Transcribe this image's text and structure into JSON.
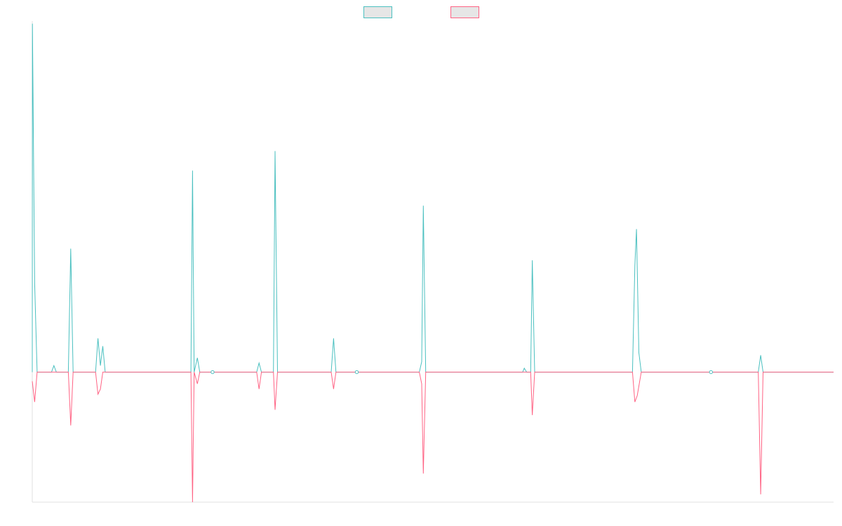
{
  "chart_data": {
    "type": "line",
    "title": "",
    "xlabel": "",
    "ylabel": "",
    "grid": false,
    "legend": "top-center",
    "x_range": [
      0,
      1000
    ],
    "ylim": [
      -100,
      270
    ],
    "series": [
      {
        "color": "#4bc0c0",
        "legend_fill": "#e6e6e6",
        "values": [
          [
            0,
            0
          ],
          [
            0.2,
            268
          ],
          [
            3,
            68
          ],
          [
            6,
            0
          ],
          [
            24,
            0
          ],
          [
            27,
            5
          ],
          [
            30,
            0
          ],
          [
            45,
            0
          ],
          [
            48,
            95
          ],
          [
            51,
            0
          ],
          [
            79,
            0
          ],
          [
            82,
            26
          ],
          [
            85,
            5
          ],
          [
            88,
            20
          ],
          [
            91,
            0
          ],
          [
            198,
            0
          ],
          [
            200,
            155
          ],
          [
            202,
            0
          ],
          [
            206,
            11
          ],
          [
            209,
            0
          ],
          [
            280,
            0
          ],
          [
            283,
            7
          ],
          [
            286,
            0
          ],
          [
            301,
            0
          ],
          [
            303,
            170
          ],
          [
            306,
            0
          ],
          [
            373,
            0
          ],
          [
            376,
            26
          ],
          [
            379,
            0
          ],
          [
            483,
            0
          ],
          [
            486,
            8
          ],
          [
            488,
            128
          ],
          [
            491,
            0
          ],
          [
            612,
            0
          ],
          [
            614,
            3
          ],
          [
            617,
            0
          ],
          [
            622,
            0
          ],
          [
            624,
            86
          ],
          [
            627,
            0
          ],
          [
            749,
            0
          ],
          [
            752,
            82
          ],
          [
            754,
            110
          ],
          [
            757,
            15
          ],
          [
            760,
            0
          ],
          [
            906,
            0
          ],
          [
            909,
            13
          ],
          [
            912,
            0
          ],
          [
            1000,
            0
          ]
        ]
      },
      {
        "color": "#ff6384",
        "legend_fill": "#e6e6e6",
        "values": [
          [
            0,
            -7
          ],
          [
            3,
            -23
          ],
          [
            6,
            0
          ],
          [
            45,
            0
          ],
          [
            48,
            -41
          ],
          [
            51,
            0
          ],
          [
            79,
            0
          ],
          [
            82,
            -17
          ],
          [
            85,
            -13
          ],
          [
            88,
            0
          ],
          [
            198,
            0
          ],
          [
            200,
            -100
          ],
          [
            202,
            0
          ],
          [
            206,
            -9
          ],
          [
            209,
            0
          ],
          [
            280,
            0
          ],
          [
            283,
            -13
          ],
          [
            286,
            0
          ],
          [
            301,
            0
          ],
          [
            303,
            -29
          ],
          [
            306,
            0
          ],
          [
            373,
            0
          ],
          [
            376,
            -13
          ],
          [
            379,
            0
          ],
          [
            483,
            0
          ],
          [
            486,
            -9
          ],
          [
            488,
            -78
          ],
          [
            491,
            0
          ],
          [
            622,
            0
          ],
          [
            624,
            -33
          ],
          [
            627,
            0
          ],
          [
            749,
            0
          ],
          [
            752,
            -23
          ],
          [
            755,
            -18
          ],
          [
            760,
            0
          ],
          [
            906,
            0
          ],
          [
            909,
            -94
          ],
          [
            912,
            0
          ],
          [
            1000,
            0
          ]
        ]
      }
    ],
    "markers": [
      [
        225,
        0
      ],
      [
        405,
        0
      ],
      [
        847,
        0
      ]
    ]
  }
}
